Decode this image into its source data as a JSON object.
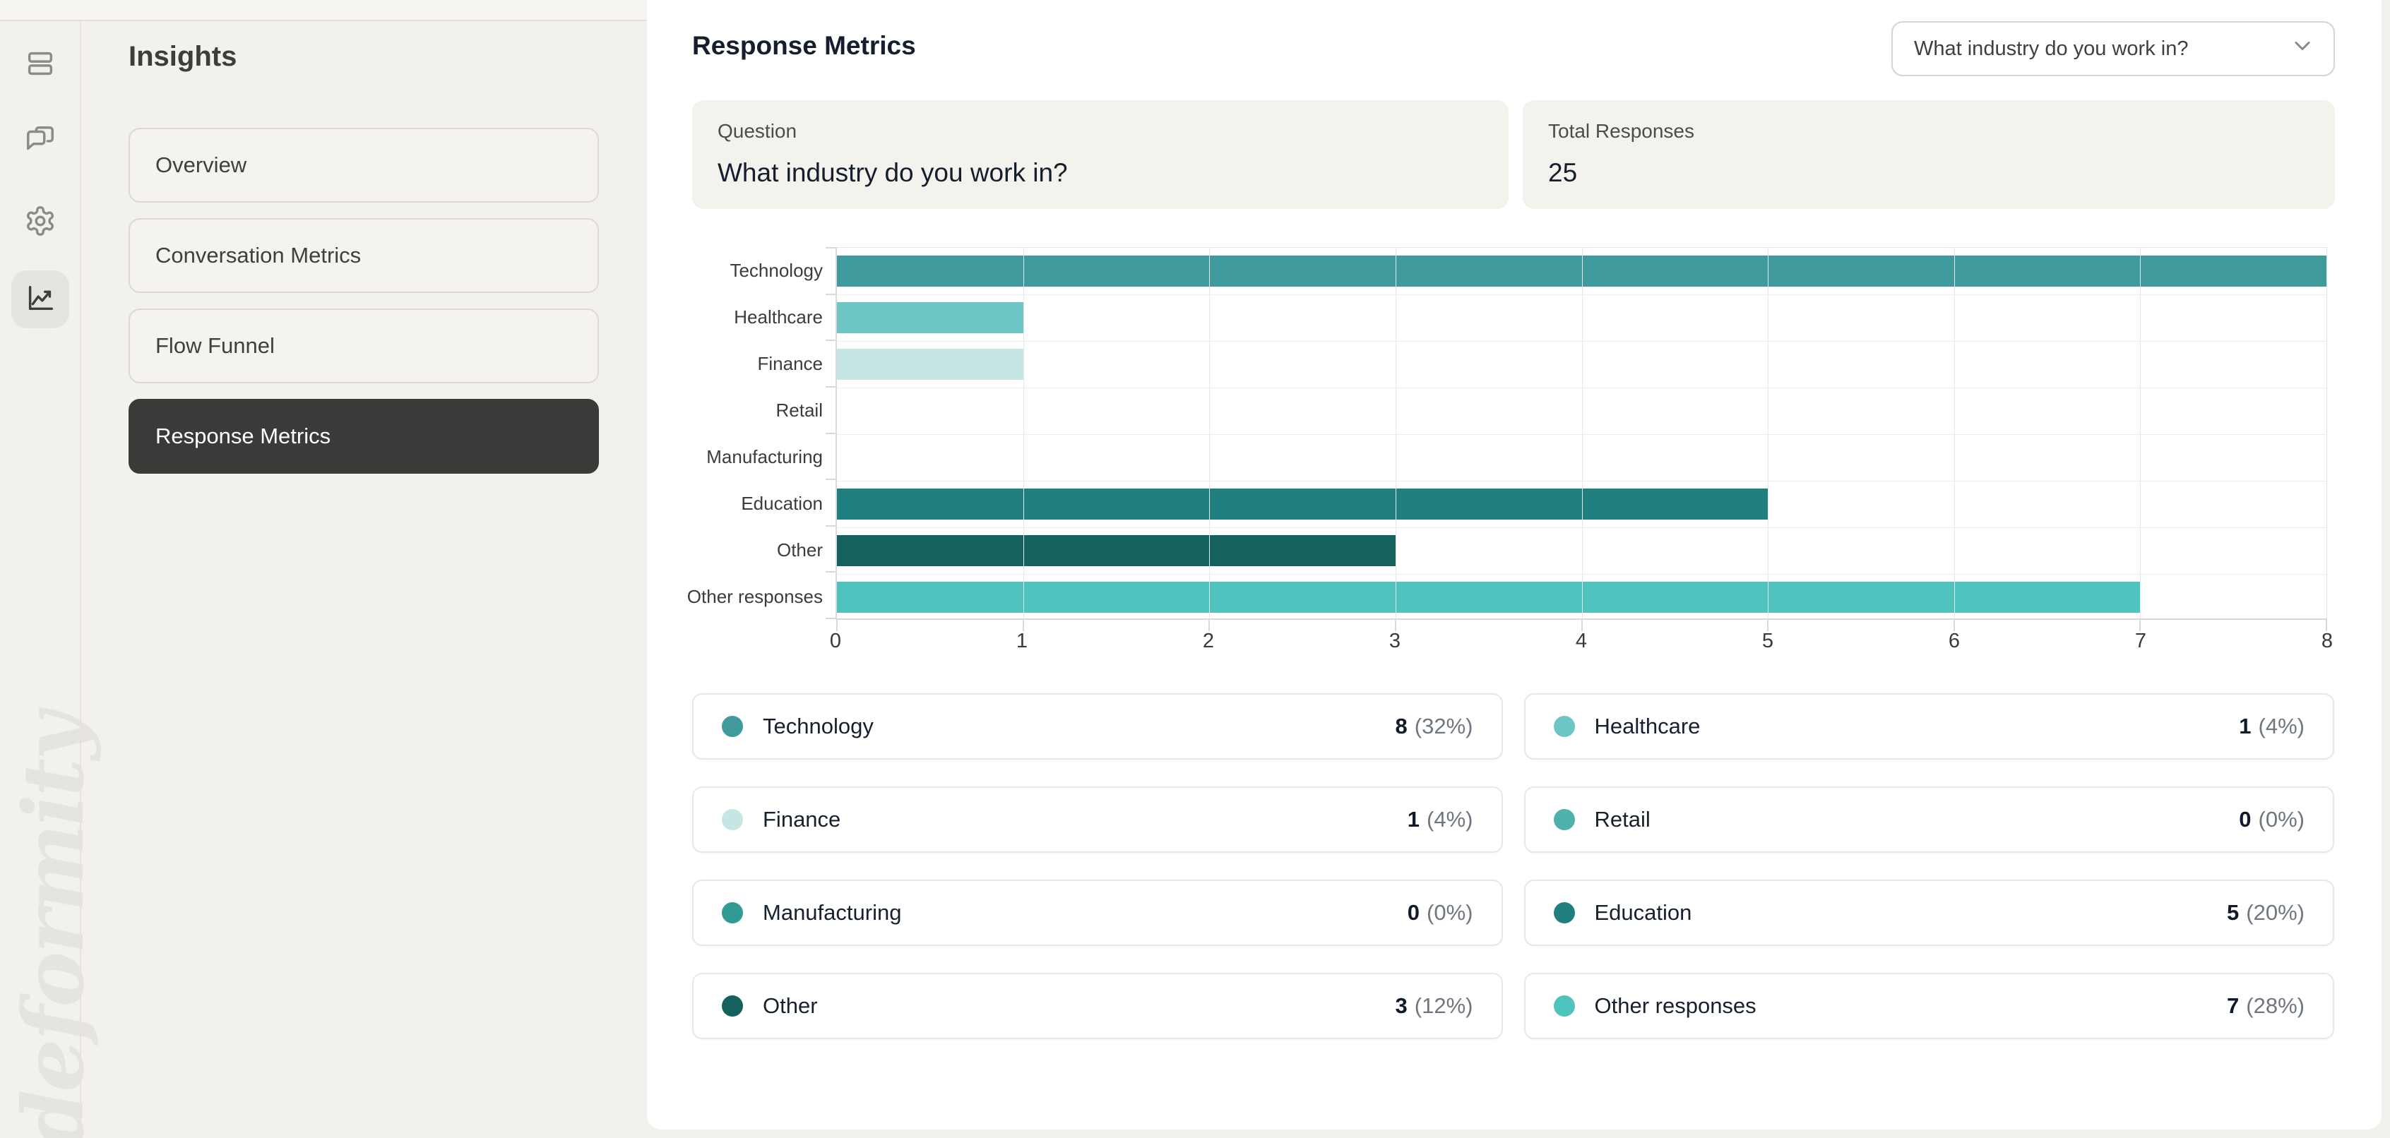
{
  "colors": {
    "page_background": "#f2f1eb",
    "panel_background": "#ffffff",
    "active_nav_background": "#3b3a38",
    "summary_card_background": "#f4f2ec",
    "text_dark": "#141e2c",
    "text_gray": "#4c4c4c",
    "percent_gray": "#6f7680"
  },
  "sidebar": {
    "icons": [
      {
        "name": "rows-icon",
        "active": false
      },
      {
        "name": "chat-icon",
        "active": false
      },
      {
        "name": "settings-icon",
        "active": false
      },
      {
        "name": "chart-icon",
        "active": true
      }
    ],
    "watermark": "deformity"
  },
  "nav": {
    "title": "Insights",
    "items": [
      {
        "label": "Overview",
        "active": false
      },
      {
        "label": "Conversation Metrics",
        "active": false
      },
      {
        "label": "Flow Funnel",
        "active": false
      },
      {
        "label": "Response Metrics",
        "active": true
      }
    ]
  },
  "header": {
    "title": "Response Metrics",
    "dropdown_value": "What industry do you work in?",
    "dropdown_icon": "chevron-down-icon"
  },
  "cards": [
    {
      "label": "Question",
      "value": "What industry do you work in?"
    },
    {
      "label": "Total Responses",
      "value": "25"
    }
  ],
  "chart_data": {
    "type": "bar",
    "orientation": "horizontal",
    "title": "",
    "xlabel": "",
    "ylabel": "",
    "categories": [
      "Technology",
      "Healthcare",
      "Finance",
      "Retail",
      "Manufacturing",
      "Education",
      "Other",
      "Other responses"
    ],
    "values": [
      8,
      1,
      1,
      0,
      0,
      5,
      3,
      7
    ],
    "colors": [
      "#3f9a9c",
      "#6ec6c4",
      "#c5e6e3",
      "#4fb1ac",
      "#2f9b94",
      "#20807f",
      "#15615e",
      "#4fc3bd"
    ],
    "xlim": [
      0,
      8
    ],
    "xticks": [
      0,
      1,
      2,
      3,
      4,
      5,
      6,
      7,
      8
    ],
    "grid": true,
    "legend_position": "bottom"
  },
  "legend": {
    "items": [
      {
        "label": "Technology",
        "count": "8",
        "pct": "(32%)",
        "color": "#3f9a9c"
      },
      {
        "label": "Healthcare",
        "count": "1",
        "pct": "(4%)",
        "color": "#6ec6c4"
      },
      {
        "label": "Finance",
        "count": "1",
        "pct": "(4%)",
        "color": "#c5e6e3"
      },
      {
        "label": "Retail",
        "count": "0",
        "pct": "(0%)",
        "color": "#4fb1ac"
      },
      {
        "label": "Manufacturing",
        "count": "0",
        "pct": "(0%)",
        "color": "#2f9b94"
      },
      {
        "label": "Education",
        "count": "5",
        "pct": "(20%)",
        "color": "#20807f"
      },
      {
        "label": "Other",
        "count": "3",
        "pct": "(12%)",
        "color": "#15615e"
      },
      {
        "label": "Other responses",
        "count": "7",
        "pct": "(28%)",
        "color": "#4fc3bd"
      }
    ]
  }
}
